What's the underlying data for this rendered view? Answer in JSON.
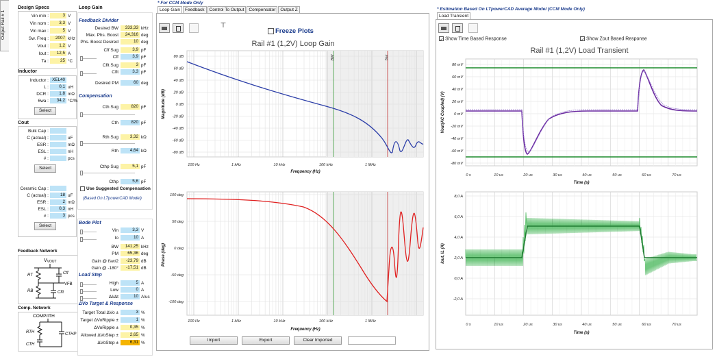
{
  "side_tab": "Output Rail # 1",
  "design_specs": {
    "title": "Design Specs",
    "rows": [
      {
        "label": "Vin min :",
        "value": "3",
        "unit": "V"
      },
      {
        "label": "Vin nom :",
        "value": "3,3",
        "unit": "V"
      },
      {
        "label": "Vin max :",
        "value": "5",
        "unit": "V"
      },
      {
        "label": "Sw. Freq :",
        "value": "2007",
        "unit": "kHz"
      },
      {
        "label": "Vout :",
        "value": "1,2",
        "unit": "V"
      },
      {
        "label": "Iout :",
        "value": "12,5",
        "unit": "A"
      },
      {
        "label": "Ta :",
        "value": "25",
        "unit": "°C"
      }
    ]
  },
  "inductor": {
    "title": "Inductor",
    "rows": [
      {
        "label": "Inductor :",
        "value": "XEL40",
        "unit": ""
      },
      {
        "label": "L :",
        "value": "0,1",
        "unit": "uH"
      },
      {
        "label": "DCR :",
        "value": "1,8",
        "unit": "mΩ"
      },
      {
        "label": "θwa :",
        "value": "34,2",
        "unit": "°C/W"
      }
    ],
    "select": "Select"
  },
  "cout": {
    "title": "Cout",
    "bulk_rows": [
      {
        "label": "Bulk Cap :",
        "value": "",
        "unit": ""
      },
      {
        "label": "C (actual) :",
        "value": "",
        "unit": "uF"
      },
      {
        "label": "ESR :",
        "value": "",
        "unit": "mΩ"
      },
      {
        "label": "ESL :",
        "value": "",
        "unit": "nH"
      },
      {
        "label": "# :",
        "value": "",
        "unit": "pcs"
      }
    ],
    "select1": "Select",
    "ceramic_rows": [
      {
        "label": "Ceramic Cap :",
        "value": "",
        "unit": ""
      },
      {
        "label": "C (actual) :",
        "value": "18",
        "unit": "uF"
      },
      {
        "label": "ESR :",
        "value": "2",
        "unit": "mΩ"
      },
      {
        "label": "ESL :",
        "value": "0,3",
        "unit": "nH"
      },
      {
        "label": "# :",
        "value": "3",
        "unit": "pcs"
      }
    ],
    "select2": "Select"
  },
  "feedback_network": {
    "title": "Feedback Network",
    "vout": "VOUT",
    "rt": "RT",
    "cff": "Cff",
    "vfb": "VFB",
    "rb": "RB",
    "cflt": "Cflt"
  },
  "comp_network": {
    "title": "Comp. Network",
    "comp": "COMP/ITH",
    "rth": "RTH",
    "cthp": "CTHP",
    "cth": "CTH"
  },
  "loop_gain": {
    "title": "Loop Gain",
    "feedback_divider": "Feedback Divider",
    "fd_rows": [
      {
        "label": "Desired BW",
        "value": "333,33",
        "unit": "kHz",
        "color": "y"
      },
      {
        "label": "Max. Phs. Boost",
        "value": "24,316",
        "unit": "deg",
        "color": "y"
      },
      {
        "label": "Phs. Boost Desired",
        "value": "10",
        "unit": "deg",
        "color": "y"
      },
      {
        "label": "Cff Sug",
        "value": "3,9",
        "unit": "pF",
        "color": "y"
      },
      {
        "label": "Cff",
        "value": "3,9",
        "unit": "pF",
        "color": "b"
      },
      {
        "label": "Cflt Sug",
        "value": "3",
        "unit": "pF",
        "color": "y"
      },
      {
        "label": "Cflt",
        "value": "3,3",
        "unit": "pF",
        "color": "b"
      },
      {
        "label": "Desired PM",
        "value": "60",
        "unit": "deg",
        "color": "b"
      }
    ],
    "compensation": "Compensation",
    "comp_rows": [
      {
        "label": "Cth Sug",
        "value": "820",
        "unit": "pF",
        "color": "y"
      },
      {
        "label": "Cth",
        "value": "820",
        "unit": "pF",
        "color": "b"
      },
      {
        "label": "Rth Sug",
        "value": "3,32",
        "unit": "kΩ",
        "color": "y"
      },
      {
        "label": "Rth",
        "value": "4,64",
        "unit": "kΩ",
        "color": "b"
      },
      {
        "label": "Cthp Sug",
        "value": "5,1",
        "unit": "pF",
        "color": "y"
      },
      {
        "label": "Cthp",
        "value": "5,6",
        "unit": "pF",
        "color": "b"
      }
    ],
    "use_suggested": "Use Suggested Compensation",
    "based_on": "(Based On LTpowerCAD Model)"
  },
  "bode_plot": {
    "title": "Bode Plot",
    "rows": [
      {
        "label": "Vin",
        "value": "3,3",
        "unit": "V",
        "color": "b"
      },
      {
        "label": "Io",
        "value": "10",
        "unit": "A",
        "color": "b"
      },
      {
        "label": "BW",
        "value": "141,25",
        "unit": "kHz",
        "color": "y"
      },
      {
        "label": "PM",
        "value": "65,36",
        "unit": "deg",
        "color": "y"
      },
      {
        "label": "Gain @ fsw/2",
        "value": "-23,79",
        "unit": "dB",
        "color": "y"
      },
      {
        "label": "Gain @ -180°",
        "value": "-17,51",
        "unit": "dB",
        "color": "y"
      }
    ],
    "load_step": "Load Step",
    "ls_rows": [
      {
        "label": "High",
        "value": "5",
        "unit": "A",
        "color": "b"
      },
      {
        "label": "Low",
        "value": "0",
        "unit": "A",
        "color": "b"
      },
      {
        "label": "ΔI/Δt",
        "value": "10",
        "unit": "A/us",
        "color": "b"
      }
    ],
    "target": "ΔVo Target & Response",
    "t_rows": [
      {
        "label": "Target Total ΔVo ±",
        "value": "3",
        "unit": "%",
        "color": "b"
      },
      {
        "label": "Target ΔVoRipple ±",
        "value": "1",
        "unit": "%",
        "color": "b"
      },
      {
        "label": "ΔVoRipple ±",
        "value": "0,35",
        "unit": "%",
        "color": "y"
      },
      {
        "label": "Allowed ΔVoStep ±",
        "value": "2,65",
        "unit": "%",
        "color": "y"
      },
      {
        "label": "ΔVoStep ±",
        "value": "6,31",
        "unit": "%",
        "color": "o"
      }
    ]
  },
  "middle": {
    "header": "* For CCM Mode Only",
    "tabs": [
      "Loop Gain",
      "Feedback",
      "Control To Output",
      "Compensator",
      "Output Z"
    ],
    "freeze": "Freeze Plots",
    "title": "Rail #1 (1,2V) Loop Gain",
    "mag_ylabel": "Magnitude (dB)",
    "mag_yticks": [
      "80 dB",
      "60 dB",
      "40 dB",
      "20 dB",
      "0 dB",
      "-20 dB",
      "-40 dB",
      "-60 dB",
      "-80 dB"
    ],
    "phase_ylabel": "Phase (deg)",
    "phase_yticks": [
      "100 deg",
      "50 deg",
      "0 deg",
      "-50 deg",
      "-100 deg"
    ],
    "xticks": [
      "100 Hz",
      "1 kHz",
      "10 kHz",
      "100 kHz",
      "1 MHz"
    ],
    "xlabel": "Frequency (Hz)",
    "bw_tag": "BW",
    "fsw_tag": "fsw",
    "import": "Import",
    "export": "Export",
    "clear": "Clear Imported",
    "mag_color": "#2c3ea8",
    "phase_color": "#e02020"
  },
  "right": {
    "header": "* Estimation Based On LTpowerCAD Average Model (CCM Mode Only)",
    "tab": "Load Transient",
    "show_time": "Show Time Based Response",
    "show_zout": "Show Zout Based Response",
    "title": "Rail #1 (1,2V) Load Transient",
    "v_ylabel": "Vout(AC Coupled) (V)",
    "v_yticks": [
      "80 mV",
      "60 mV",
      "40 mV",
      "20 mV",
      "0 mV",
      "-20 mV",
      "-40 mV",
      "-60 mV",
      "-80 mV"
    ],
    "i_ylabel": "Iout, IL (A)",
    "i_yticks": [
      "8,0 A",
      "6,0 A",
      "4,0 A",
      "2,0 A",
      "0,0 A",
      "-2,0 A"
    ],
    "xticks": [
      "0 s",
      "10 us",
      "20 us",
      "30 us",
      "40 us",
      "50 us",
      "60 us",
      "70 us"
    ],
    "xlabel": "Time (s)",
    "limit_color": "#1a8a2a",
    "vout_color": "#6a2aa0",
    "il_color": "#36b04a"
  }
}
